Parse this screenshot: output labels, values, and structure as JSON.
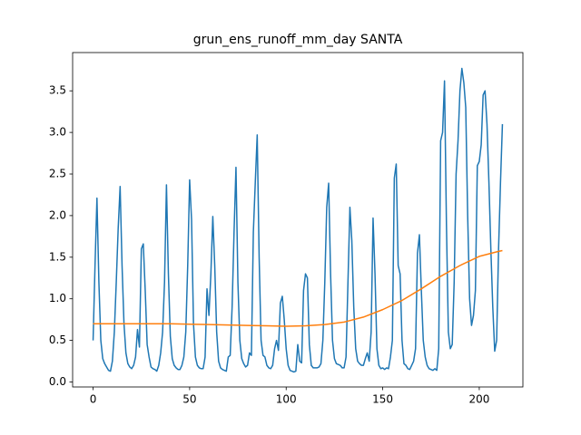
{
  "chart_data": {
    "type": "line",
    "title": "grun_ens_runoff_mm_day SANTA",
    "x": [
      0,
      1,
      2,
      3,
      4,
      5,
      6,
      7,
      8,
      9,
      10,
      11,
      12,
      13,
      14,
      15,
      16,
      17,
      18,
      19,
      20,
      21,
      22,
      23,
      24,
      25,
      26,
      27,
      28,
      29,
      30,
      31,
      32,
      33,
      34,
      35,
      36,
      37,
      38,
      39,
      40,
      41,
      42,
      43,
      44,
      45,
      46,
      47,
      48,
      49,
      50,
      51,
      52,
      53,
      54,
      55,
      56,
      57,
      58,
      59,
      60,
      61,
      62,
      63,
      64,
      65,
      66,
      67,
      68,
      69,
      70,
      71,
      72,
      73,
      74,
      75,
      76,
      77,
      78,
      79,
      80,
      81,
      82,
      83,
      84,
      85,
      86,
      87,
      88,
      89,
      90,
      91,
      92,
      93,
      94,
      95,
      96,
      97,
      98,
      99,
      100,
      101,
      102,
      103,
      104,
      105,
      106,
      107,
      108,
      109,
      110,
      111,
      112,
      113,
      114,
      115,
      116,
      117,
      118,
      119,
      120,
      121,
      122,
      123,
      124,
      125,
      126,
      127,
      128,
      129,
      130,
      131,
      132,
      133,
      134,
      135,
      136,
      137,
      138,
      139,
      140,
      141,
      142,
      143,
      144,
      145,
      146,
      147,
      148,
      149,
      150,
      151,
      152,
      153,
      154,
      155,
      156,
      157,
      158,
      159,
      160,
      161,
      162,
      163,
      164,
      165,
      166,
      167,
      168,
      169,
      170,
      171,
      172,
      173,
      174,
      175,
      176,
      177,
      178,
      179,
      180,
      181,
      182,
      183,
      184,
      185,
      186,
      187,
      188,
      189,
      190,
      191,
      192,
      193,
      194,
      195,
      196,
      197,
      198,
      199,
      200,
      201,
      202,
      203,
      204,
      205,
      206,
      207,
      208,
      209,
      210,
      211,
      212
    ],
    "series": [
      {
        "color": "#1f77b4",
        "values": [
          0.5,
          1.4,
          2.21,
          1.2,
          0.5,
          0.28,
          0.22,
          0.18,
          0.14,
          0.13,
          0.25,
          0.6,
          1.2,
          1.85,
          2.35,
          1.4,
          0.7,
          0.35,
          0.22,
          0.18,
          0.16,
          0.2,
          0.3,
          0.63,
          0.42,
          1.6,
          1.66,
          1.1,
          0.45,
          0.3,
          0.18,
          0.16,
          0.15,
          0.13,
          0.2,
          0.35,
          0.6,
          1.2,
          2.37,
          1.3,
          0.55,
          0.28,
          0.2,
          0.17,
          0.15,
          0.15,
          0.2,
          0.3,
          0.6,
          1.4,
          2.43,
          1.95,
          0.7,
          0.3,
          0.2,
          0.17,
          0.16,
          0.16,
          0.3,
          1.12,
          0.8,
          1.3,
          1.99,
          1.4,
          0.6,
          0.25,
          0.17,
          0.15,
          0.14,
          0.13,
          0.3,
          0.32,
          0.9,
          1.8,
          2.58,
          1.2,
          0.5,
          0.28,
          0.22,
          0.18,
          0.2,
          0.35,
          0.32,
          1.8,
          2.4,
          2.97,
          1.5,
          0.5,
          0.32,
          0.3,
          0.2,
          0.17,
          0.16,
          0.2,
          0.4,
          0.5,
          0.38,
          0.95,
          1.03,
          0.75,
          0.4,
          0.2,
          0.14,
          0.13,
          0.12,
          0.13,
          0.45,
          0.25,
          0.23,
          1.1,
          1.3,
          1.25,
          0.45,
          0.2,
          0.17,
          0.17,
          0.17,
          0.18,
          0.22,
          0.5,
          1.2,
          2.1,
          2.39,
          1.3,
          0.5,
          0.28,
          0.22,
          0.21,
          0.2,
          0.17,
          0.17,
          0.3,
          1.2,
          2.1,
          1.7,
          0.9,
          0.4,
          0.25,
          0.22,
          0.2,
          0.2,
          0.28,
          0.35,
          0.25,
          0.6,
          1.97,
          1.3,
          0.4,
          0.2,
          0.16,
          0.17,
          0.15,
          0.17,
          0.16,
          0.3,
          0.5,
          2.45,
          2.62,
          1.4,
          1.3,
          0.5,
          0.22,
          0.2,
          0.16,
          0.15,
          0.2,
          0.25,
          0.4,
          1.55,
          1.77,
          1.1,
          0.5,
          0.3,
          0.2,
          0.16,
          0.15,
          0.14,
          0.16,
          0.14,
          0.4,
          2.9,
          3.0,
          3.62,
          1.9,
          0.6,
          0.4,
          0.45,
          1.2,
          2.5,
          2.9,
          3.5,
          3.77,
          3.6,
          3.3,
          2.0,
          1.0,
          0.68,
          0.8,
          1.1,
          2.6,
          2.65,
          2.85,
          3.45,
          3.5,
          3.1,
          2.4,
          1.6,
          0.9,
          0.37,
          0.5,
          1.6,
          2.4,
          3.1
        ]
      },
      {
        "color": "#ff7f0e",
        "x": [
          0,
          10,
          20,
          30,
          40,
          50,
          60,
          70,
          80,
          90,
          100,
          110,
          120,
          130,
          140,
          150,
          160,
          170,
          180,
          190,
          200,
          210,
          212
        ],
        "values": [
          0.7,
          0.7,
          0.7,
          0.7,
          0.7,
          0.695,
          0.69,
          0.685,
          0.68,
          0.675,
          0.67,
          0.675,
          0.69,
          0.72,
          0.78,
          0.87,
          0.98,
          1.12,
          1.27,
          1.4,
          1.51,
          1.57,
          1.58
        ]
      }
    ],
    "xlim": [
      -10.6,
      222.6
    ],
    "xticks": [
      0,
      50,
      100,
      150,
      200
    ],
    "ylim": [
      -0.06,
      3.96
    ],
    "yticks": [
      {
        "value": 0,
        "label": "0.0"
      },
      {
        "value": 0.5,
        "label": "0.5"
      },
      {
        "value": 1,
        "label": "1.0"
      },
      {
        "value": 1.5,
        "label": "1.5"
      },
      {
        "value": 2,
        "label": "2.0"
      },
      {
        "value": 2.5,
        "label": "2.5"
      },
      {
        "value": 3,
        "label": "3.0"
      },
      {
        "value": 3.5,
        "label": "3.5"
      }
    ],
    "grid": false
  }
}
